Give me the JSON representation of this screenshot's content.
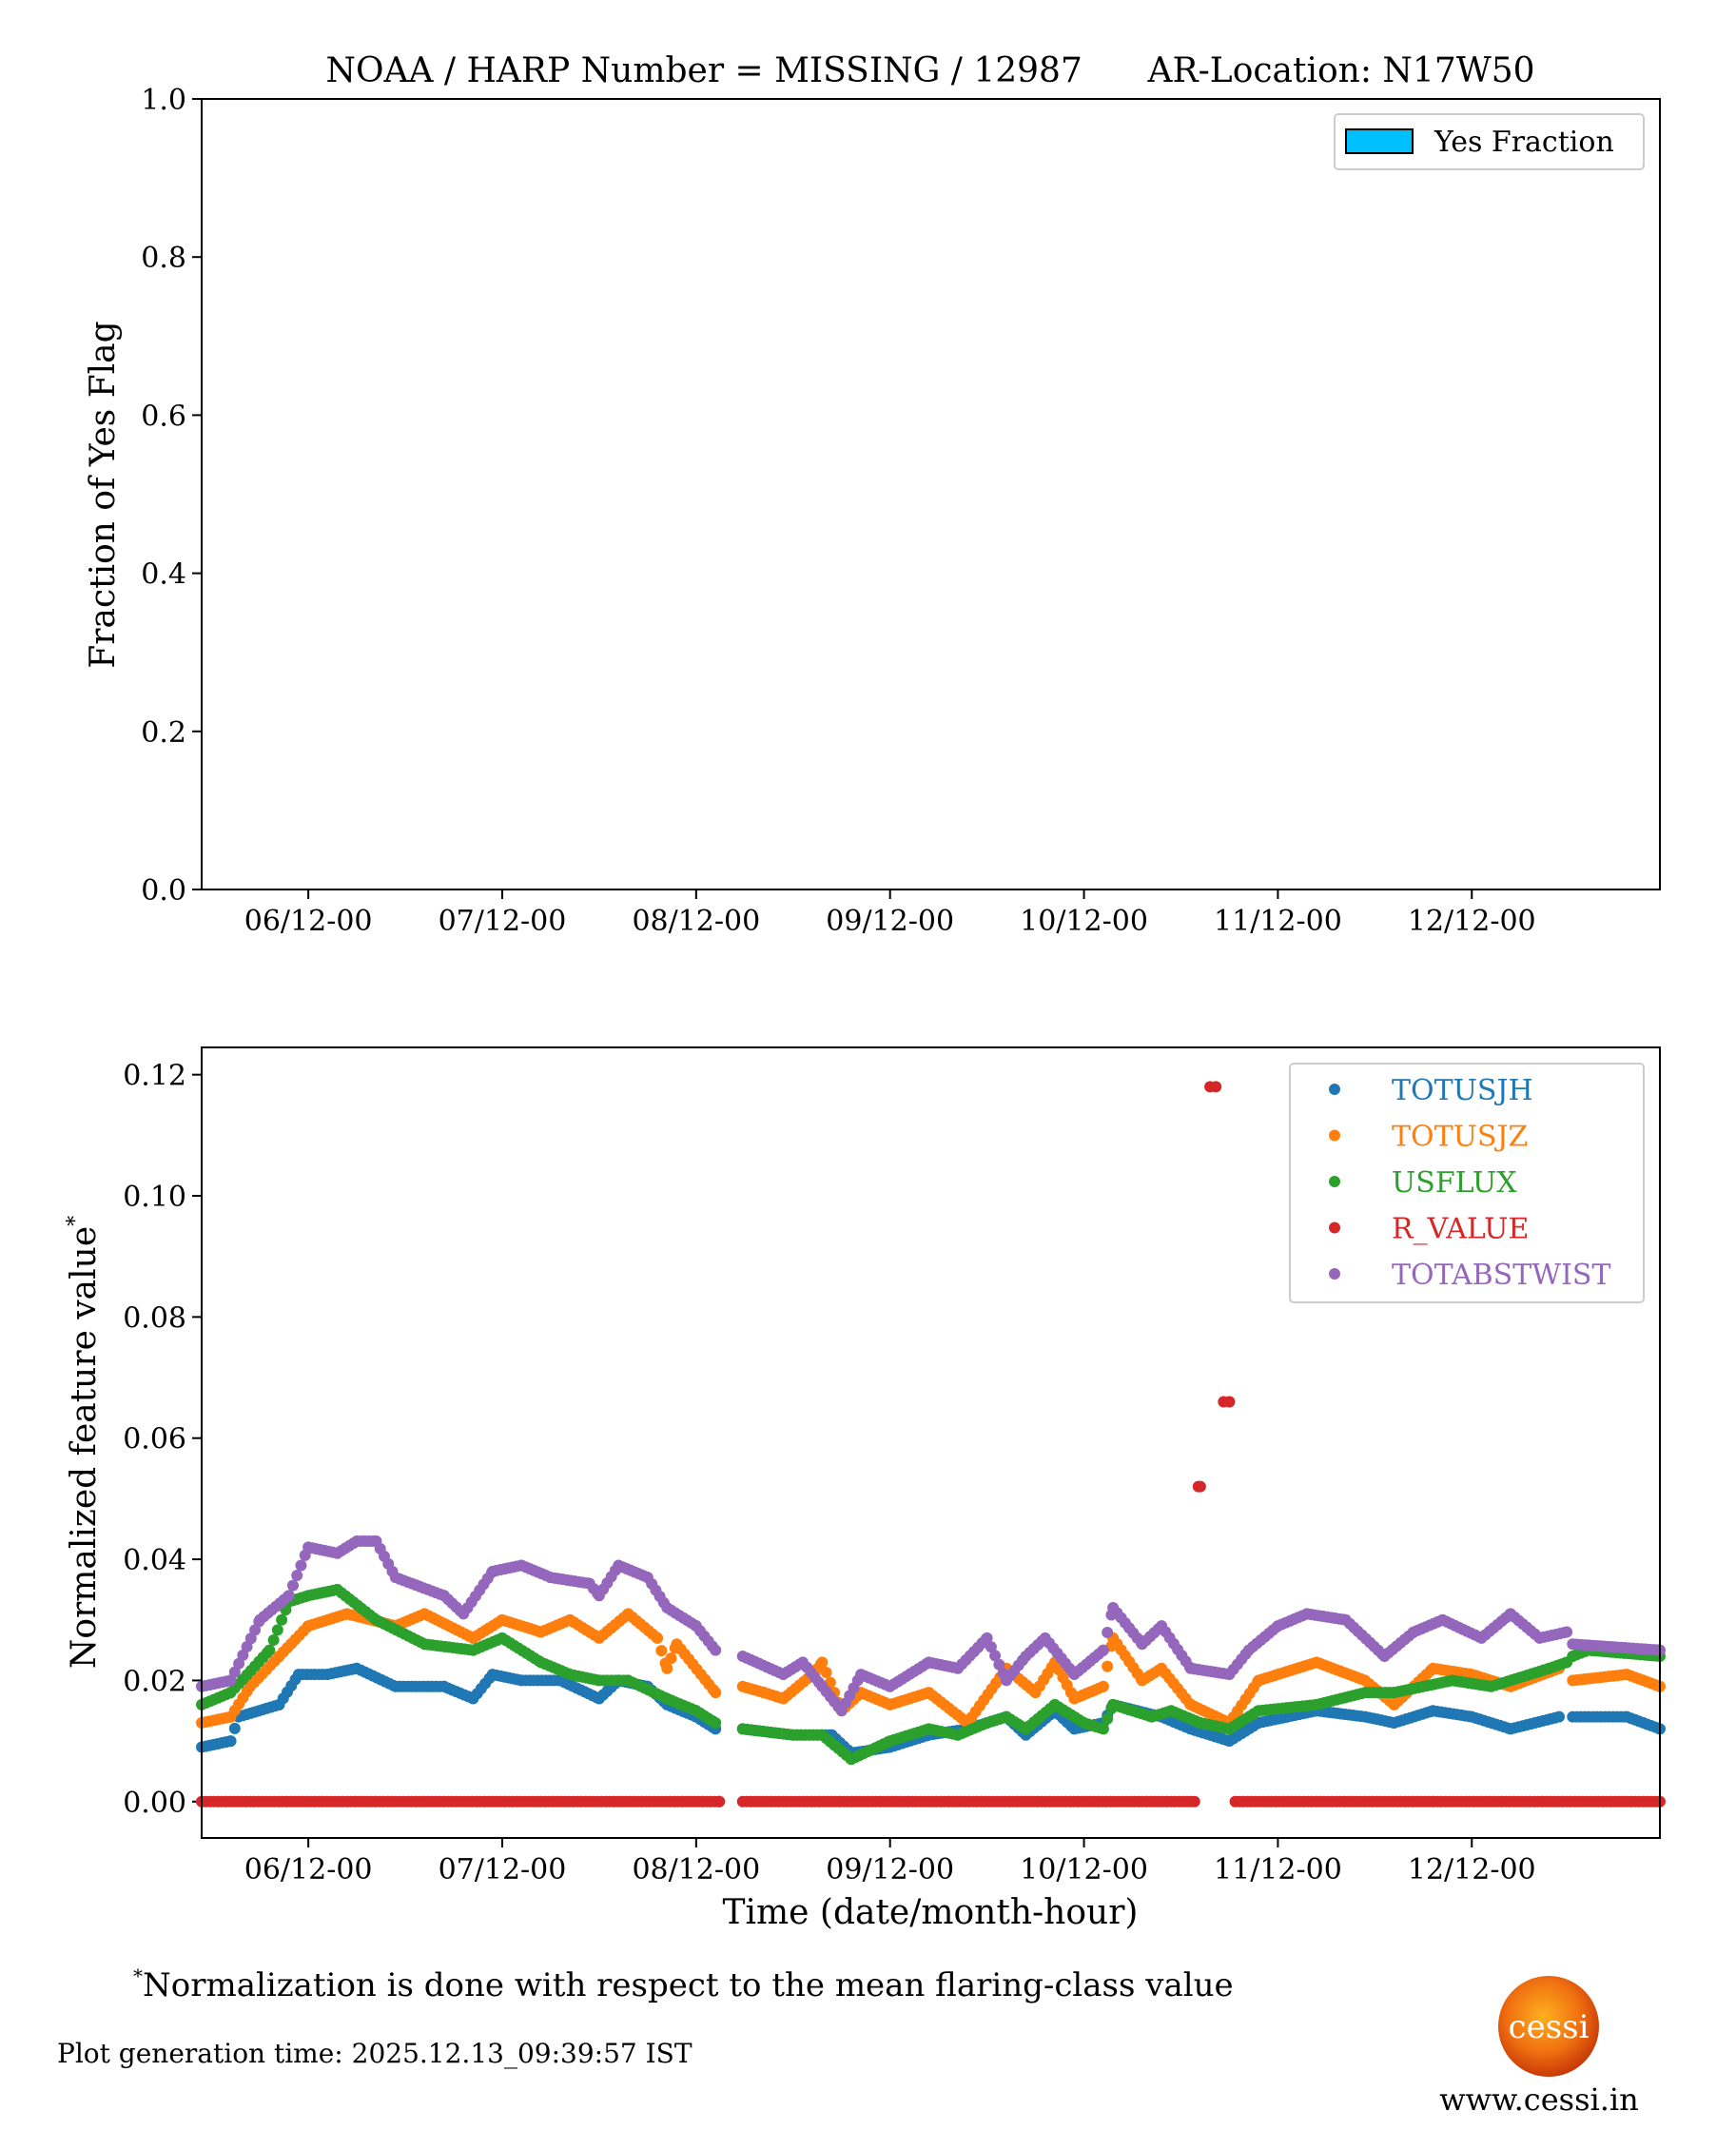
{
  "chart_data": [
    {
      "type": "bar",
      "title": "NOAA / HARP Number = MISSING / 12987      AR-Location: N17W50",
      "xlabel": "",
      "ylabel": "Fraction of Yes Flag",
      "ylim": [
        0,
        1.0
      ],
      "yticks": [
        "0.0",
        "0.2",
        "0.4",
        "0.6",
        "0.8",
        "1.0"
      ],
      "ytick_values": [
        0,
        0.2,
        0.4,
        0.6,
        0.8,
        1.0
      ],
      "xlim_days": [
        5.45,
        12.97
      ],
      "xticks": [
        "06/12-00",
        "07/12-00",
        "08/12-00",
        "09/12-00",
        "10/12-00",
        "11/12-00",
        "12/12-00"
      ],
      "xtick_days": [
        6,
        7,
        8,
        9,
        10,
        11,
        12
      ],
      "legend": {
        "placement": "top-right",
        "entries": [
          {
            "name": "Yes Fraction",
            "color": "#00bfff"
          }
        ]
      },
      "values": []
    },
    {
      "type": "scatter",
      "xlabel": "Time (date/month-hour)",
      "ylabel": "Normalized feature value",
      "ylabel_superscript": "*",
      "ylim": [
        -0.006,
        0.1245
      ],
      "yticks": [
        "0.00",
        "0.02",
        "0.04",
        "0.06",
        "0.08",
        "0.10",
        "0.12"
      ],
      "ytick_values": [
        0,
        0.02,
        0.04,
        0.06,
        0.08,
        0.1,
        0.12
      ],
      "xlim_days": [
        5.45,
        12.97
      ],
      "xticks": [
        "06/12-00",
        "07/12-00",
        "08/12-00",
        "09/12-00",
        "10/12-00",
        "11/12-00",
        "12/12-00"
      ],
      "xtick_days": [
        6,
        7,
        8,
        9,
        10,
        11,
        12
      ],
      "legend_placement": "top-right",
      "series": [
        {
          "name": "TOTUSJH",
          "color": "#1f77b4",
          "points": [
            [
              5.45,
              0.009
            ],
            [
              5.6,
              0.01
            ],
            [
              5.64,
              0.014
            ],
            [
              5.85,
              0.016
            ],
            [
              5.95,
              0.021
            ],
            [
              6.1,
              0.021
            ],
            [
              6.25,
              0.022
            ],
            [
              6.45,
              0.019
            ],
            [
              6.7,
              0.019
            ],
            [
              6.85,
              0.017
            ],
            [
              6.95,
              0.021
            ],
            [
              7.1,
              0.02
            ],
            [
              7.3,
              0.02
            ],
            [
              7.5,
              0.017
            ],
            [
              7.6,
              0.02
            ],
            [
              7.75,
              0.019
            ],
            [
              7.85,
              0.016
            ],
            [
              8.0,
              0.014
            ],
            [
              8.1,
              0.012
            ],
            null,
            [
              8.24,
              0.012
            ],
            [
              8.5,
              0.011
            ],
            [
              8.7,
              0.011
            ],
            [
              8.8,
              0.008
            ],
            [
              9.0,
              0.009
            ],
            [
              9.2,
              0.011
            ],
            [
              9.4,
              0.012
            ],
            [
              9.6,
              0.014
            ],
            [
              9.7,
              0.011
            ],
            [
              9.85,
              0.015
            ],
            [
              9.95,
              0.012
            ],
            [
              10.1,
              0.013
            ],
            [
              10.15,
              0.016
            ],
            [
              10.4,
              0.014
            ],
            [
              10.55,
              0.012
            ],
            [
              10.75,
              0.01
            ],
            [
              10.9,
              0.013
            ],
            [
              11.2,
              0.015
            ],
            [
              11.45,
              0.014
            ],
            [
              11.6,
              0.013
            ],
            [
              11.8,
              0.015
            ],
            [
              12.0,
              0.014
            ],
            [
              12.2,
              0.012
            ],
            [
              12.45,
              0.014
            ],
            null,
            [
              12.52,
              0.014
            ],
            [
              12.8,
              0.014
            ],
            [
              12.97,
              0.012
            ]
          ]
        },
        {
          "name": "TOTUSJZ",
          "color": "#ff7f0e",
          "points": [
            [
              5.45,
              0.013
            ],
            [
              5.6,
              0.014
            ],
            [
              5.7,
              0.019
            ],
            [
              5.85,
              0.024
            ],
            [
              6.0,
              0.029
            ],
            [
              6.2,
              0.031
            ],
            [
              6.45,
              0.029
            ],
            [
              6.6,
              0.031
            ],
            [
              6.85,
              0.027
            ],
            [
              7.0,
              0.03
            ],
            [
              7.2,
              0.028
            ],
            [
              7.35,
              0.03
            ],
            [
              7.5,
              0.027
            ],
            [
              7.65,
              0.031
            ],
            [
              7.8,
              0.027
            ],
            [
              7.85,
              0.022
            ],
            [
              7.9,
              0.026
            ],
            [
              8.1,
              0.018
            ],
            null,
            [
              8.24,
              0.019
            ],
            [
              8.35,
              0.018
            ],
            [
              8.45,
              0.017
            ],
            [
              8.6,
              0.021
            ],
            [
              8.65,
              0.023
            ],
            [
              8.75,
              0.015
            ],
            [
              8.85,
              0.018
            ],
            [
              9.0,
              0.016
            ],
            [
              9.2,
              0.018
            ],
            [
              9.4,
              0.013
            ],
            [
              9.6,
              0.022
            ],
            [
              9.75,
              0.018
            ],
            [
              9.85,
              0.023
            ],
            [
              9.95,
              0.017
            ],
            [
              10.1,
              0.019
            ],
            [
              10.15,
              0.027
            ],
            [
              10.3,
              0.02
            ],
            [
              10.4,
              0.022
            ],
            [
              10.55,
              0.016
            ],
            [
              10.75,
              0.013
            ],
            [
              10.9,
              0.02
            ],
            [
              11.2,
              0.023
            ],
            [
              11.45,
              0.02
            ],
            [
              11.6,
              0.016
            ],
            [
              11.8,
              0.022
            ],
            [
              12.0,
              0.021
            ],
            [
              12.2,
              0.019
            ],
            [
              12.45,
              0.022
            ],
            null,
            [
              12.52,
              0.02
            ],
            [
              12.8,
              0.021
            ],
            [
              12.97,
              0.019
            ]
          ]
        },
        {
          "name": "USFLUX",
          "color": "#2ca02c",
          "points": [
            [
              5.45,
              0.016
            ],
            [
              5.6,
              0.018
            ],
            [
              5.8,
              0.025
            ],
            [
              5.9,
              0.033
            ],
            [
              6.0,
              0.034
            ],
            [
              6.15,
              0.035
            ],
            [
              6.35,
              0.03
            ],
            [
              6.6,
              0.026
            ],
            [
              6.85,
              0.025
            ],
            [
              7.0,
              0.027
            ],
            [
              7.2,
              0.023
            ],
            [
              7.35,
              0.021
            ],
            [
              7.5,
              0.02
            ],
            [
              7.65,
              0.02
            ],
            [
              7.85,
              0.017
            ],
            [
              8.0,
              0.015
            ],
            [
              8.1,
              0.013
            ],
            null,
            [
              8.24,
              0.012
            ],
            [
              8.5,
              0.011
            ],
            [
              8.65,
              0.011
            ],
            [
              8.8,
              0.007
            ],
            [
              9.0,
              0.01
            ],
            [
              9.2,
              0.012
            ],
            [
              9.35,
              0.011
            ],
            [
              9.5,
              0.013
            ],
            [
              9.6,
              0.014
            ],
            [
              9.7,
              0.012
            ],
            [
              9.85,
              0.016
            ],
            [
              10.0,
              0.013
            ],
            [
              10.1,
              0.012
            ],
            [
              10.15,
              0.016
            ],
            [
              10.35,
              0.014
            ],
            [
              10.45,
              0.015
            ],
            [
              10.6,
              0.013
            ],
            [
              10.75,
              0.012
            ],
            [
              10.9,
              0.015
            ],
            [
              11.2,
              0.016
            ],
            [
              11.45,
              0.018
            ],
            [
              11.6,
              0.018
            ],
            [
              11.9,
              0.02
            ],
            [
              12.1,
              0.019
            ],
            [
              12.4,
              0.022
            ],
            [
              12.49,
              0.023
            ],
            null,
            [
              12.52,
              0.024
            ],
            [
              12.6,
              0.025
            ],
            [
              12.97,
              0.024
            ]
          ]
        },
        {
          "name": "R_VALUE",
          "color": "#d62728",
          "points": [
            [
              5.45,
              0
            ],
            [
              8.12,
              0
            ],
            null,
            [
              8.24,
              0
            ],
            [
              10.57,
              0
            ],
            null,
            [
              10.78,
              0
            ],
            [
              12.97,
              0
            ]
          ],
          "extra_points": [
            [
              10.59,
              0.052
            ],
            [
              10.6,
              0.052
            ],
            [
              10.65,
              0.118
            ],
            [
              10.68,
              0.118
            ],
            [
              10.72,
              0.066
            ],
            [
              10.75,
              0.066
            ]
          ]
        },
        {
          "name": "TOTABSTWIST",
          "color": "#9467bd",
          "points": [
            [
              5.45,
              0.019
            ],
            [
              5.6,
              0.02
            ],
            [
              5.75,
              0.03
            ],
            [
              5.9,
              0.034
            ],
            [
              6.0,
              0.042
            ],
            [
              6.15,
              0.041
            ],
            [
              6.25,
              0.043
            ],
            [
              6.35,
              0.043
            ],
            [
              6.45,
              0.037
            ],
            [
              6.7,
              0.034
            ],
            [
              6.8,
              0.031
            ],
            [
              6.95,
              0.038
            ],
            [
              7.1,
              0.039
            ],
            [
              7.25,
              0.037
            ],
            [
              7.45,
              0.036
            ],
            [
              7.5,
              0.034
            ],
            [
              7.6,
              0.039
            ],
            [
              7.75,
              0.037
            ],
            [
              7.85,
              0.032
            ],
            [
              8.0,
              0.029
            ],
            [
              8.1,
              0.025
            ],
            null,
            [
              8.24,
              0.024
            ],
            [
              8.45,
              0.021
            ],
            [
              8.55,
              0.023
            ],
            [
              8.65,
              0.019
            ],
            [
              8.75,
              0.015
            ],
            [
              8.85,
              0.021
            ],
            [
              9.0,
              0.019
            ],
            [
              9.2,
              0.023
            ],
            [
              9.35,
              0.022
            ],
            [
              9.5,
              0.027
            ],
            [
              9.6,
              0.02
            ],
            [
              9.7,
              0.024
            ],
            [
              9.8,
              0.027
            ],
            [
              9.95,
              0.021
            ],
            [
              10.1,
              0.025
            ],
            [
              10.15,
              0.032
            ],
            [
              10.3,
              0.026
            ],
            [
              10.4,
              0.029
            ],
            [
              10.55,
              0.022
            ],
            [
              10.75,
              0.021
            ],
            [
              10.85,
              0.025
            ],
            [
              11.0,
              0.029
            ],
            [
              11.15,
              0.031
            ],
            [
              11.35,
              0.03
            ],
            [
              11.55,
              0.024
            ],
            [
              11.7,
              0.028
            ],
            [
              11.85,
              0.03
            ],
            [
              12.05,
              0.027
            ],
            [
              12.2,
              0.031
            ],
            [
              12.35,
              0.027
            ],
            [
              12.49,
              0.028
            ],
            null,
            [
              12.52,
              0.026
            ],
            [
              12.97,
              0.025
            ]
          ]
        }
      ]
    }
  ],
  "footnote": {
    "marker": "*",
    "text": "Normalization is done with respect to the mean flaring-class value"
  },
  "generation_time": "Plot generation time: 2025.12.13_09:39:57 IST",
  "logo": {
    "text": "cessi"
  },
  "website": "www.cessi.in"
}
